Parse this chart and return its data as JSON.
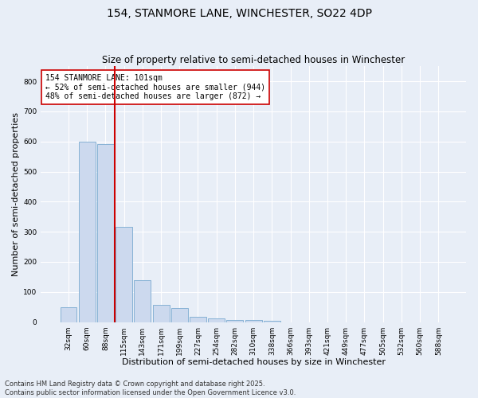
{
  "title_line1": "154, STANMORE LANE, WINCHESTER, SO22 4DP",
  "title_line2": "Size of property relative to semi-detached houses in Winchester",
  "xlabel": "Distribution of semi-detached houses by size in Winchester",
  "ylabel": "Number of semi-detached properties",
  "categories": [
    "32sqm",
    "60sqm",
    "88sqm",
    "115sqm",
    "143sqm",
    "171sqm",
    "199sqm",
    "227sqm",
    "254sqm",
    "282sqm",
    "310sqm",
    "338sqm",
    "366sqm",
    "393sqm",
    "421sqm",
    "449sqm",
    "477sqm",
    "505sqm",
    "532sqm",
    "560sqm",
    "588sqm"
  ],
  "values": [
    50,
    600,
    590,
    315,
    140,
    57,
    47,
    17,
    12,
    8,
    8,
    5,
    0,
    0,
    0,
    0,
    0,
    0,
    0,
    0,
    0
  ],
  "bar_color": "#ccd9ee",
  "bar_edge_color": "#7aaad0",
  "reference_line_color": "#cc0000",
  "annotation_text": "154 STANMORE LANE: 101sqm\n← 52% of semi-detached houses are smaller (944)\n48% of semi-detached houses are larger (872) →",
  "annotation_box_facecolor": "#ffffff",
  "annotation_box_edgecolor": "#cc0000",
  "ylim": [
    0,
    850
  ],
  "yticks": [
    0,
    100,
    200,
    300,
    400,
    500,
    600,
    700,
    800
  ],
  "grid_color": "#ffffff",
  "background_color": "#e8eef7",
  "footer_line1": "Contains HM Land Registry data © Crown copyright and database right 2025.",
  "footer_line2": "Contains public sector information licensed under the Open Government Licence v3.0.",
  "title_fontsize": 10,
  "subtitle_fontsize": 8.5,
  "axis_label_fontsize": 8,
  "tick_fontsize": 6.5,
  "annotation_fontsize": 7,
  "footer_fontsize": 6
}
